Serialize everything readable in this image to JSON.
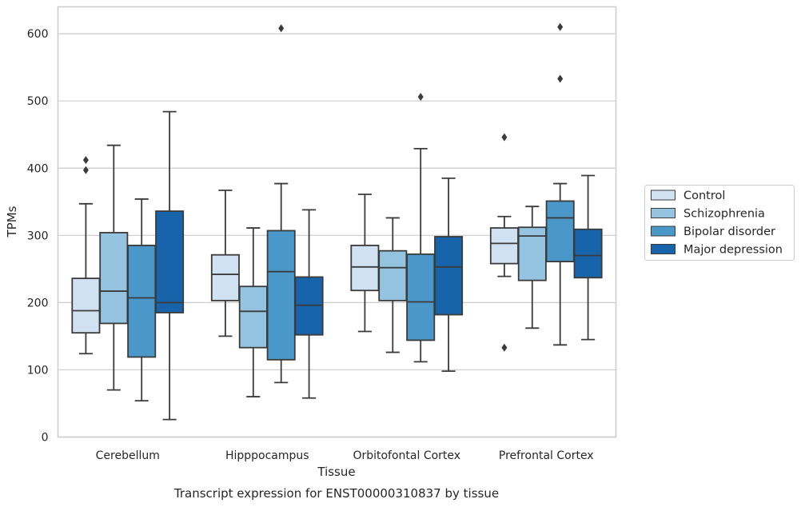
{
  "chart_data": {
    "type": "box",
    "title": "Transcript expression for ENST00000310837 by tissue",
    "xlabel": "Tissue",
    "ylabel": "TPMs",
    "ylim": [
      0,
      640
    ],
    "yticks": [
      0,
      100,
      200,
      300,
      400,
      500,
      600
    ],
    "grid": "horizontal",
    "legend_position": "right",
    "categories": [
      "Cerebellum",
      "Hipppocampus",
      "Orbitofontal Cortex",
      "Prefrontal Cortex"
    ],
    "series": [
      {
        "name": "Control",
        "color": "#d0e1f2",
        "boxes": [
          {
            "whisker_low": 124,
            "q1": 155,
            "median": 188,
            "q3": 236,
            "whisker_high": 347,
            "outliers": [
              397,
              412
            ]
          },
          {
            "whisker_low": 150,
            "q1": 203,
            "median": 242,
            "q3": 271,
            "whisker_high": 367,
            "outliers": []
          },
          {
            "whisker_low": 157,
            "q1": 218,
            "median": 253,
            "q3": 285,
            "whisker_high": 361,
            "outliers": []
          },
          {
            "whisker_low": 239,
            "q1": 258,
            "median": 288,
            "q3": 311,
            "whisker_high": 328,
            "outliers": [
              133,
              446
            ]
          }
        ]
      },
      {
        "name": "Schizophrenia",
        "color": "#94c4df",
        "boxes": [
          {
            "whisker_low": 70,
            "q1": 169,
            "median": 217,
            "q3": 304,
            "whisker_high": 434,
            "outliers": []
          },
          {
            "whisker_low": 60,
            "q1": 133,
            "median": 187,
            "q3": 224,
            "whisker_high": 311,
            "outliers": []
          },
          {
            "whisker_low": 126,
            "q1": 203,
            "median": 252,
            "q3": 277,
            "whisker_high": 326,
            "outliers": []
          },
          {
            "whisker_low": 162,
            "q1": 233,
            "median": 299,
            "q3": 312,
            "whisker_high": 343,
            "outliers": []
          }
        ]
      },
      {
        "name": "Bipolar disorder",
        "color": "#4a98c9",
        "boxes": [
          {
            "whisker_low": 54,
            "q1": 119,
            "median": 207,
            "q3": 285,
            "whisker_high": 354,
            "outliers": []
          },
          {
            "whisker_low": 81,
            "q1": 115,
            "median": 246,
            "q3": 307,
            "whisker_high": 377,
            "outliers": [
              608
            ]
          },
          {
            "whisker_low": 112,
            "q1": 144,
            "median": 201,
            "q3": 272,
            "whisker_high": 429,
            "outliers": [
              506
            ]
          },
          {
            "whisker_low": 137,
            "q1": 261,
            "median": 326,
            "q3": 351,
            "whisker_high": 377,
            "outliers": [
              533,
              610
            ]
          }
        ]
      },
      {
        "name": "Major depression",
        "color": "#1764ab",
        "boxes": [
          {
            "whisker_low": 26,
            "q1": 185,
            "median": 200,
            "q3": 336,
            "whisker_high": 484,
            "outliers": []
          },
          {
            "whisker_low": 58,
            "q1": 152,
            "median": 196,
            "q3": 238,
            "whisker_high": 338,
            "outliers": []
          },
          {
            "whisker_low": 98,
            "q1": 182,
            "median": 253,
            "q3": 298,
            "whisker_high": 385,
            "outliers": []
          },
          {
            "whisker_low": 145,
            "q1": 237,
            "median": 270,
            "q3": 309,
            "whisker_high": 389,
            "outliers": []
          }
        ]
      }
    ]
  }
}
